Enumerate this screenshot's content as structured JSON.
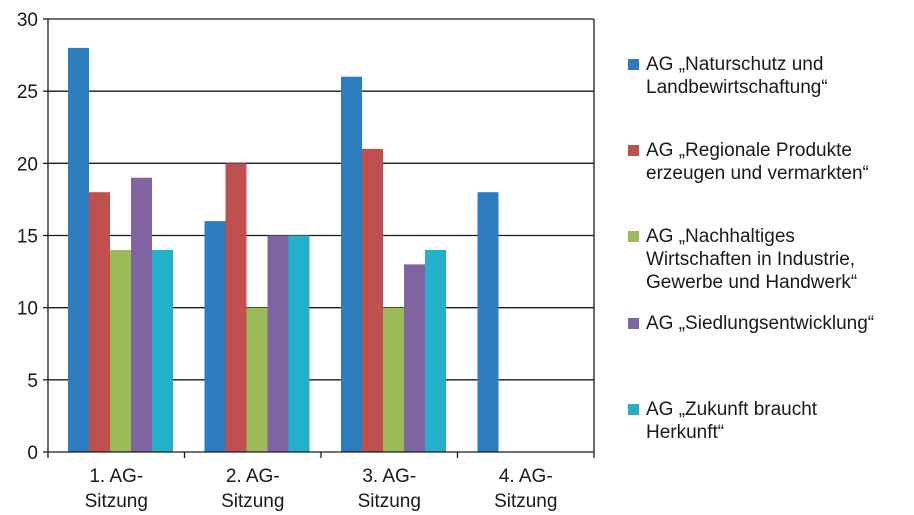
{
  "chart_data": {
    "type": "bar",
    "categories": [
      "1. AG-\nSitzung",
      "2. AG-\nSitzung",
      "3. AG-\nSitzung",
      "4. AG-\nSitzung"
    ],
    "series": [
      {
        "name": "AG „Naturschutz und\nLandbewirtschaftung“",
        "color": "#2e7dc0",
        "values": [
          28,
          16,
          26,
          18
        ]
      },
      {
        "name": "AG „Regionale Produkte\nerzeugen und vermarkten“",
        "color": "#c0504d",
        "values": [
          18,
          20,
          21,
          null
        ]
      },
      {
        "name": "AG „Nachhaltiges\nWirtschaften in Industrie,\nGewerbe und Handwerk“",
        "color": "#9bbb59",
        "values": [
          14,
          10,
          10,
          null
        ]
      },
      {
        "name": "AG „Siedlungsentwicklung“",
        "color": "#8064a2",
        "values": [
          19,
          15,
          13,
          null
        ]
      },
      {
        "name": "AG „Zukunft braucht\nHerkunft“",
        "color": "#23b1c9",
        "values": [
          14,
          15,
          14,
          null
        ]
      }
    ],
    "yticks": [
      "0",
      "5",
      "10",
      "15",
      "20",
      "25",
      "30"
    ],
    "ylim": [
      0,
      30
    ],
    "grid": true,
    "legend": "right"
  }
}
